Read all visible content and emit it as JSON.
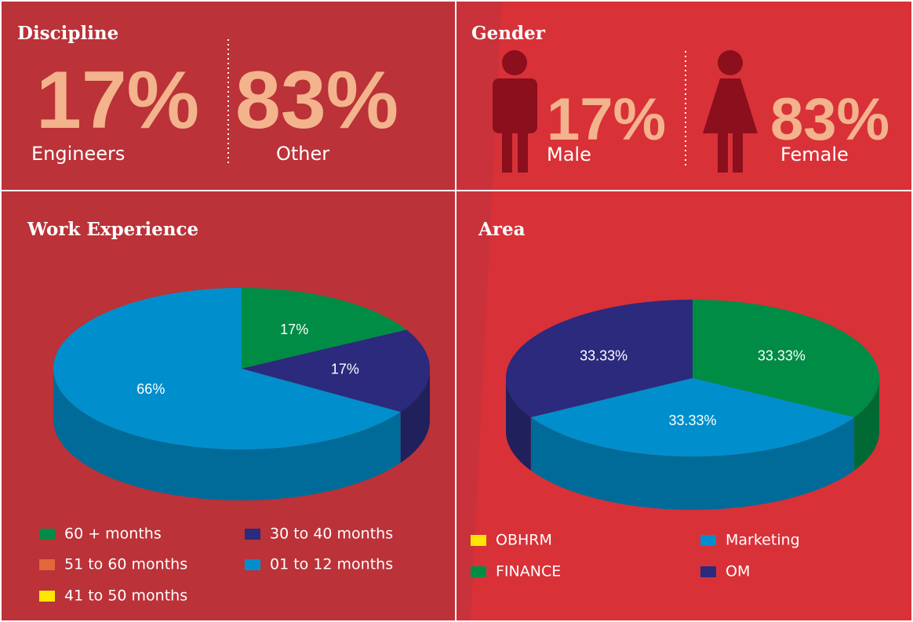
{
  "discipline": {
    "title": "Discipline",
    "items": [
      {
        "text": "17%",
        "label": "Engineers"
      },
      {
        "text": "83%",
        "label": "Other"
      }
    ]
  },
  "gender": {
    "title": "Gender",
    "items": [
      {
        "text": "17%",
        "label": "Male"
      },
      {
        "text": "83%",
        "label": "Female"
      }
    ]
  },
  "chart_data": [
    {
      "type": "pie",
      "title": "Work Experience",
      "categories": [
        "60 + months",
        "51 to 60 months",
        "41 to 50 months",
        "30 to 40 months",
        "01 to 12 months"
      ],
      "values": [
        17,
        0,
        0,
        17,
        66
      ],
      "value_labels": [
        "17%",
        null,
        null,
        "17%",
        "66%"
      ],
      "colors": [
        "#008c45",
        "#e2683a",
        "#ffe600",
        "#2b2a7c",
        "#008fcc"
      ]
    },
    {
      "type": "pie",
      "title": "Area",
      "categories": [
        "OBHRM",
        "FINANCE",
        "Marketing",
        "OM"
      ],
      "values": [
        0,
        33.33,
        33.33,
        33.33
      ],
      "value_labels": [
        null,
        "33.33%",
        "33.33%",
        "33.33%"
      ],
      "colors": [
        "#ffe600",
        "#008c45",
        "#008fcc",
        "#2b2a7c"
      ]
    }
  ]
}
